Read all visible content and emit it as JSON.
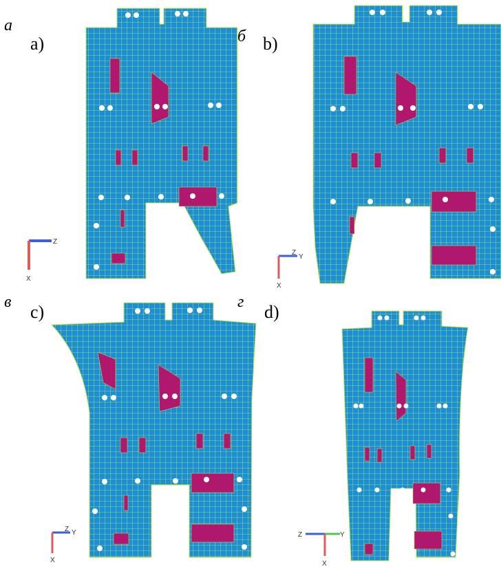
{
  "panels": [
    {
      "tag": "а",
      "label": "a)",
      "axes": [
        "Z",
        "X"
      ]
    },
    {
      "tag": "б",
      "label": "b)",
      "axes": [
        "Z",
        "Y",
        "X"
      ]
    },
    {
      "tag": "в",
      "label": "c)",
      "axes": [
        "Z",
        "Y",
        "X"
      ]
    },
    {
      "tag": "г",
      "label": "d)",
      "axes": [
        "Z",
        "Y",
        "X"
      ]
    }
  ]
}
